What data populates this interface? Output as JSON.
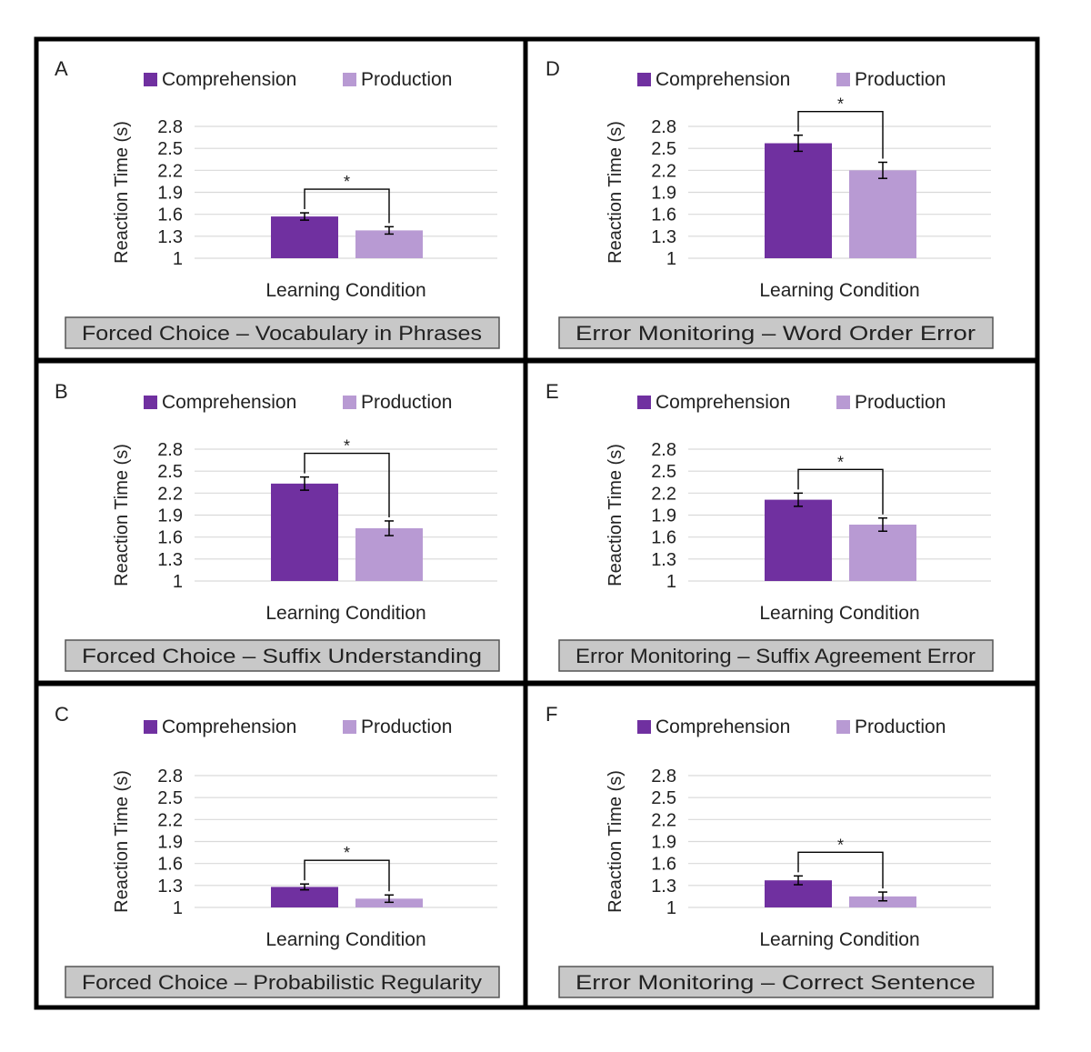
{
  "colors": {
    "comprehension": "#7030a0",
    "production": "#b89ad3",
    "caption_bg": "#c8c8c8",
    "grid": "#d9d9d9",
    "frame": "#000000"
  },
  "chart_data": [
    {
      "panel": "A",
      "type": "bar",
      "title": "Forced Choice – Vocabulary in Phrases",
      "xlabel": "Learning Condition",
      "ylabel": "Reaction Time (s)",
      "yticks": [
        1,
        1.3,
        1.6,
        1.9,
        2.2,
        2.5,
        2.8
      ],
      "ylim": [
        1,
        2.8
      ],
      "grid": true,
      "legend": "top",
      "series": [
        {
          "name": "Comprehension",
          "value": 1.57,
          "error": 0.05
        },
        {
          "name": "Production",
          "value": 1.38,
          "error": 0.05
        }
      ],
      "significance": "*"
    },
    {
      "panel": "B",
      "type": "bar",
      "title": "Forced Choice – Suffix Understanding",
      "xlabel": "Learning Condition",
      "ylabel": "Reaction Time (s)",
      "yticks": [
        1,
        1.3,
        1.6,
        1.9,
        2.2,
        2.5,
        2.8
      ],
      "ylim": [
        1,
        2.8
      ],
      "grid": true,
      "legend": "top",
      "series": [
        {
          "name": "Comprehension",
          "value": 2.33,
          "error": 0.09
        },
        {
          "name": "Production",
          "value": 1.72,
          "error": 0.1
        }
      ],
      "significance": "*"
    },
    {
      "panel": "C",
      "type": "bar",
      "title": "Forced Choice – Probabilistic Regularity",
      "xlabel": "Learning Condition",
      "ylabel": "Reaction Time (s)",
      "yticks": [
        1,
        1.3,
        1.6,
        1.9,
        2.2,
        2.5,
        2.8
      ],
      "ylim": [
        1,
        2.8
      ],
      "grid": true,
      "legend": "top",
      "series": [
        {
          "name": "Comprehension",
          "value": 1.28,
          "error": 0.04
        },
        {
          "name": "Production",
          "value": 1.12,
          "error": 0.05
        }
      ],
      "significance": "*"
    },
    {
      "panel": "D",
      "type": "bar",
      "title": "Error Monitoring – Word Order Error",
      "xlabel": "Learning Condition",
      "ylabel": "Reaction Time (s)",
      "yticks": [
        1,
        1.3,
        1.6,
        1.9,
        2.2,
        2.5,
        2.8
      ],
      "ylim": [
        1,
        2.8
      ],
      "grid": true,
      "legend": "top",
      "series": [
        {
          "name": "Comprehension",
          "value": 2.57,
          "error": 0.11
        },
        {
          "name": "Production",
          "value": 2.2,
          "error": 0.11
        }
      ],
      "significance": "*"
    },
    {
      "panel": "E",
      "type": "bar",
      "title": "Error Monitoring – Suffix Agreement Error",
      "xlabel": "Learning Condition",
      "ylabel": "Reaction Time (s)",
      "yticks": [
        1,
        1.3,
        1.6,
        1.9,
        2.2,
        2.5,
        2.8
      ],
      "ylim": [
        1,
        2.8
      ],
      "grid": true,
      "legend": "top",
      "series": [
        {
          "name": "Comprehension",
          "value": 2.11,
          "error": 0.09
        },
        {
          "name": "Production",
          "value": 1.77,
          "error": 0.09
        }
      ],
      "significance": "*"
    },
    {
      "panel": "F",
      "type": "bar",
      "title": "Error Monitoring – Correct Sentence",
      "xlabel": "Learning Condition",
      "ylabel": "Reaction Time (s)",
      "yticks": [
        1,
        1.3,
        1.6,
        1.9,
        2.2,
        2.5,
        2.8
      ],
      "ylim": [
        1,
        2.8
      ],
      "grid": true,
      "legend": "top",
      "series": [
        {
          "name": "Comprehension",
          "value": 1.37,
          "error": 0.06
        },
        {
          "name": "Production",
          "value": 1.15,
          "error": 0.06
        }
      ],
      "significance": "*"
    }
  ]
}
